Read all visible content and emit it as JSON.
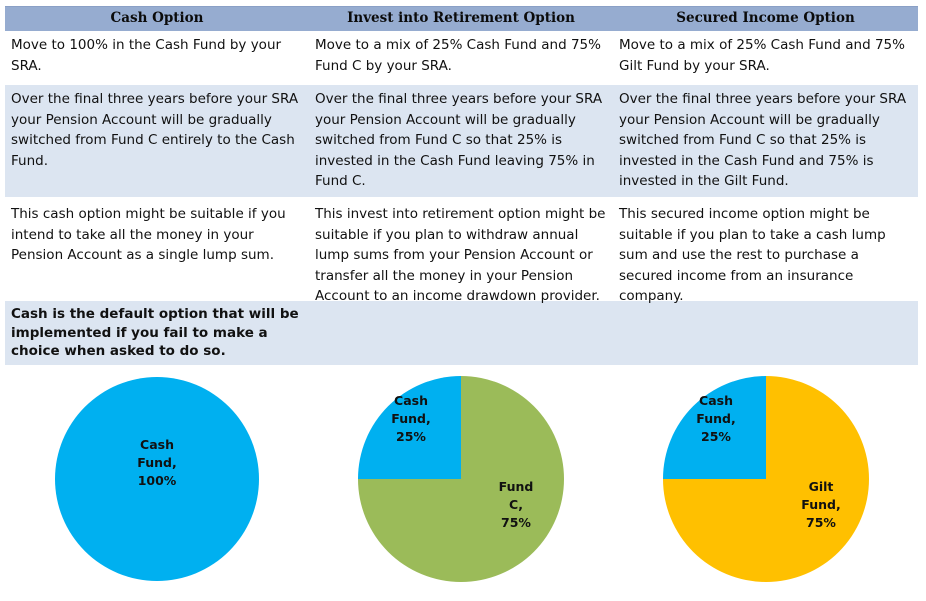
{
  "header": {
    "col1": "Cash Option",
    "col2": "Invest into Retirement Option",
    "col3": "Secured Income Option"
  },
  "rows": {
    "allocation": {
      "col1": [
        "Move to 100% in the Cash Fund by your",
        "SRA."
      ],
      "col2": [
        "Move to a mix of 25% Cash Fund and 75%",
        "Fund C by your SRA."
      ],
      "col3": [
        "Move to a mix of 25% Cash Fund and 75%",
        "Gilt Fund by your SRA."
      ]
    },
    "switching": {
      "col1": [
        "Over the final three years before your SRA",
        "your Pension Account will be gradually",
        "switched from Fund C entirely to the Cash",
        "Fund."
      ],
      "col2": [
        "Over the final three years before your SRA",
        "your Pension Account will be gradually",
        "switched from Fund C so that 25% is",
        "invested in the Cash Fund leaving 75% in",
        "Fund C."
      ],
      "col3": [
        "Over the final three years before your SRA",
        "your Pension Account will be gradually",
        "switched from Fund C so that 25% is",
        "invested in the Cash Fund and 75% is",
        "invested in the Gilt Fund."
      ]
    },
    "suitability": {
      "col1": [
        "This cash option might be suitable if you",
        "intend to take all the money in your",
        "Pension Account as a single lump sum."
      ],
      "col2": [
        "This invest into retirement option might be",
        "suitable if you plan to withdraw annual",
        "lump sums from your Pension Account or",
        "transfer all the money in your Pension",
        "Account to an income drawdown provider."
      ],
      "col3": [
        "This secured income option might be",
        "suitable if you plan to take a cash lump",
        "sum and use the rest to purchase a",
        "secured income from an insurance",
        "company."
      ]
    },
    "default_note": [
      "Cash is the default option that will be",
      "implemented if you fail to make a",
      "choice when asked to do so."
    ]
  },
  "chart_data": [
    {
      "type": "pie",
      "slices": [
        {
          "label": [
            "Cash",
            "Fund,",
            "100%"
          ],
          "value": 100,
          "color": "#00b0f0"
        }
      ]
    },
    {
      "type": "pie",
      "slices": [
        {
          "label": [
            "Cash",
            "Fund,",
            "25%"
          ],
          "value": 25,
          "color": "#00b0f0"
        },
        {
          "label": [
            "Fund",
            "C,",
            "75%"
          ],
          "value": 75,
          "color": "#9bbb59"
        }
      ]
    },
    {
      "type": "pie",
      "slices": [
        {
          "label": [
            "Cash",
            "Fund,",
            "25%"
          ],
          "value": 25,
          "color": "#00b0f0"
        },
        {
          "label": [
            "Gilt",
            "Fund,",
            "75%"
          ],
          "value": 75,
          "color": "#ffc000"
        }
      ]
    }
  ]
}
